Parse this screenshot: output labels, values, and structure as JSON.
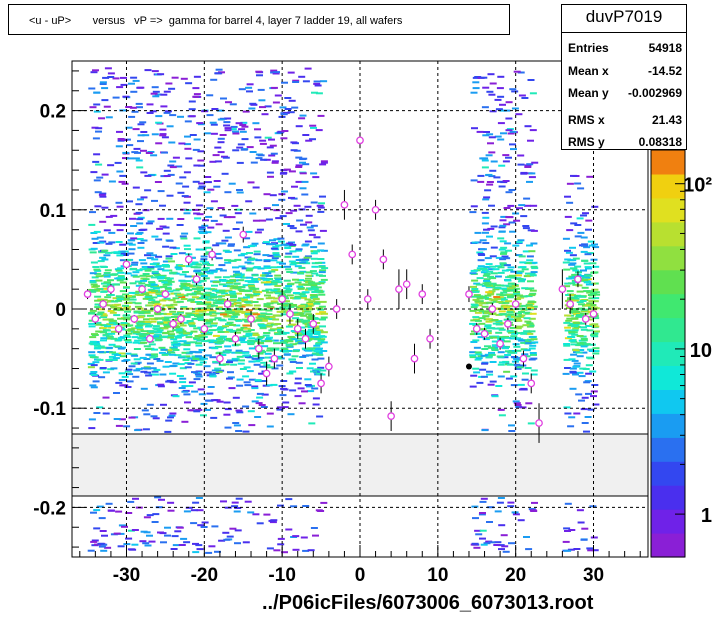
{
  "title": "<u - uP>       versus   vP =>  gamma for barrel 4, layer 7 ladder 19, all wafers",
  "stats": {
    "name": "duvP7019",
    "rows": [
      {
        "label": "Entries",
        "value": "54918"
      },
      {
        "label": "Mean x",
        "value": "-14.52"
      },
      {
        "label": "Mean y",
        "value": "-0.002969"
      },
      {
        "label": "RMS x",
        "value": "21.43"
      },
      {
        "label": "RMS y",
        "value": "0.08318"
      }
    ]
  },
  "footer": "../P06icFiles/6073006_6073013.root",
  "colors": {
    "profile_marker": "#e040e0",
    "palette": [
      "#8a1fd6",
      "#6f22e8",
      "#4a2fee",
      "#3347f0",
      "#2a70f0",
      "#1a9cf2",
      "#10c8f0",
      "#10e8d8",
      "#20eab8",
      "#30e890",
      "#40e870",
      "#60e050",
      "#90e040",
      "#b8e030",
      "#e0e020",
      "#f0d010",
      "#f08010"
    ]
  },
  "chart_data": {
    "type": "heatmap",
    "title": "<u - uP>       versus   vP =>  gamma for barrel 4, layer 7 ladder 19, all wafers",
    "xlabel": "",
    "ylabel": "",
    "xlim": [
      -37,
      37
    ],
    "ylim": [
      -0.25,
      0.25
    ],
    "x_ticks": [
      -30,
      -20,
      -10,
      0,
      10,
      20,
      30
    ],
    "y_ticks": [
      -0.2,
      -0.1,
      0,
      0.1,
      0.2
    ],
    "grid": true,
    "colorbar": {
      "scale": "log",
      "ticks": [
        {
          "label": "1",
          "value": 1
        },
        {
          "label": "10",
          "value": 10
        },
        {
          "label": "10²",
          "value": 100
        }
      ]
    },
    "blank_band_y": [
      -0.188,
      -0.124
    ],
    "occupied_x_ranges": [
      [
        -35,
        -5
      ],
      [
        14,
        22
      ],
      [
        26,
        30
      ]
    ],
    "profile": {
      "x": [
        -35,
        -34,
        -33,
        -32,
        -31,
        -30,
        -29,
        -28,
        -27,
        -26,
        -25,
        -24,
        -23,
        -22,
        -21,
        -20,
        -19,
        -18,
        -17,
        -16,
        -15,
        -14,
        -13,
        -12,
        -11,
        -10,
        -9,
        -8,
        -7,
        -6,
        -5,
        -4,
        -3,
        -2,
        -1,
        0,
        1,
        2,
        3,
        4,
        5,
        6,
        7,
        8,
        9,
        14,
        15,
        16,
        17,
        18,
        19,
        20,
        21,
        22,
        23,
        26,
        27,
        28,
        29,
        30
      ],
      "y": [
        0.015,
        -0.01,
        0.005,
        0.02,
        -0.02,
        0.045,
        -0.01,
        0.02,
        -0.03,
        0.0,
        0.015,
        -0.015,
        -0.01,
        0.05,
        0.03,
        -0.02,
        0.055,
        -0.05,
        0.005,
        -0.03,
        0.075,
        -0.01,
        -0.04,
        -0.065,
        -0.05,
        0.01,
        -0.005,
        -0.02,
        -0.03,
        -0.015,
        -0.075,
        -0.058,
        0.0,
        0.105,
        0.055,
        0.17,
        0.01,
        0.1,
        0.05,
        -0.108,
        0.02,
        0.025,
        -0.05,
        0.015,
        -0.03,
        0.015,
        -0.02,
        -0.025,
        0.0,
        -0.035,
        -0.015,
        0.005,
        -0.05,
        -0.075,
        -0.115,
        0.02,
        0.005,
        0.03,
        -0.01,
        -0.005
      ],
      "err": [
        0.005,
        0.005,
        0.004,
        0.005,
        0.006,
        0.005,
        0.004,
        0.004,
        0.004,
        0.004,
        0.004,
        0.005,
        0.005,
        0.006,
        0.006,
        0.006,
        0.006,
        0.006,
        0.006,
        0.007,
        0.008,
        0.008,
        0.01,
        0.012,
        0.01,
        0.01,
        0.01,
        0.01,
        0.01,
        0.01,
        0.01,
        0.01,
        0.01,
        0.015,
        0.01,
        0.008,
        0.01,
        0.01,
        0.01,
        0.015,
        0.02,
        0.015,
        0.015,
        0.01,
        0.01,
        0.008,
        0.006,
        0.006,
        0.006,
        0.006,
        0.006,
        0.006,
        0.008,
        0.01,
        0.02,
        0.02,
        0.01,
        0.008,
        0.006,
        0.006
      ]
    },
    "highlight_point": {
      "x": 14,
      "y": -0.058
    }
  }
}
